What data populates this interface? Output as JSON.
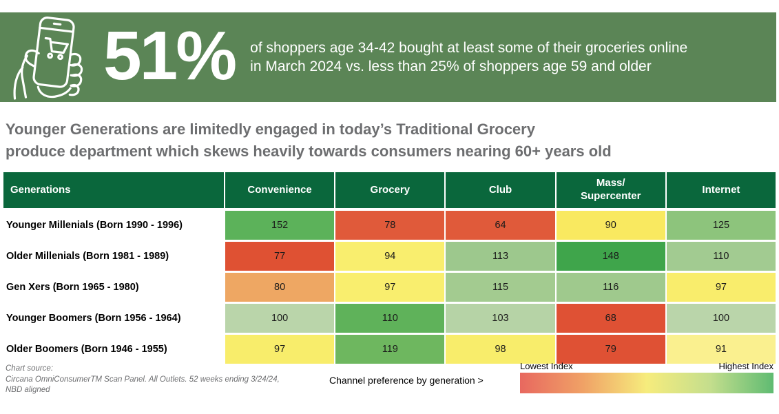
{
  "banner": {
    "bg_color": "#5b8556",
    "stat": "51%",
    "description_line1": "of shoppers age 34-42 bought at least some of their groceries online",
    "description_line2": "in March 2024 vs. less than 25% of shoppers age 59 and older",
    "icon": "hand-holding-phone-shopping-cart-icon"
  },
  "headline": {
    "line1": "Younger Generations are limitedly engaged in today’s Traditional Grocery",
    "line2": "produce department which skews heavily towards consumers nearing 60+ years old"
  },
  "chart_data": {
    "type": "heatmap",
    "header_bg_color": "#0a673c",
    "row_header": "Generations",
    "columns": [
      "Convenience",
      "Grocery",
      "Club",
      "Mass/\nSupercenter",
      "Internet"
    ],
    "rows": [
      {
        "label": "Younger Millenials (Born 1990 - 1996)",
        "values": [
          152,
          78,
          64,
          90,
          125
        ],
        "colors": [
          "#5cb25a",
          "#e05a3a",
          "#e05a3a",
          "#f9e960",
          "#8dc47c"
        ]
      },
      {
        "label": "Older Millenials (Born 1981 - 1989)",
        "values": [
          77,
          94,
          113,
          148,
          110
        ],
        "colors": [
          "#df5133",
          "#f9ee6e",
          "#9dc88d",
          "#3fa54b",
          "#a2cb91"
        ]
      },
      {
        "label": "Gen Xers (Born 1965 - 1980)",
        "values": [
          80,
          97,
          115,
          116,
          97
        ],
        "colors": [
          "#eea763",
          "#f9ee6e",
          "#a3cb90",
          "#9fc98d",
          "#f9ed6c"
        ]
      },
      {
        "label": "Younger Boomers (Born 1956 - 1964)",
        "values": [
          100,
          110,
          103,
          68,
          100
        ],
        "colors": [
          "#bad5aa",
          "#5fb25a",
          "#b6d3a6",
          "#df5134",
          "#bad5aa"
        ]
      },
      {
        "label": "Older Boomers (Born 1946 - 1955)",
        "values": [
          97,
          119,
          98,
          79,
          91
        ],
        "colors": [
          "#f8ed6b",
          "#6eb75f",
          "#f8ed6b",
          "#df5134",
          "#faf08f"
        ]
      }
    ],
    "legend": {
      "low_label": "Lowest Index",
      "high_label": "Highest Index",
      "gradient_stops": [
        "#e8685f",
        "#f0a266",
        "#f6ec7d",
        "#c4de8d",
        "#5fbb72"
      ]
    },
    "caption": "Channel preference by generation >"
  },
  "footer": {
    "source_lines": [
      "Chart source:",
      "Circana OmniConsumerTM Scan Panel. All Outlets. 52 weeks ending 3/24/24,",
      "NBD aligned"
    ]
  }
}
